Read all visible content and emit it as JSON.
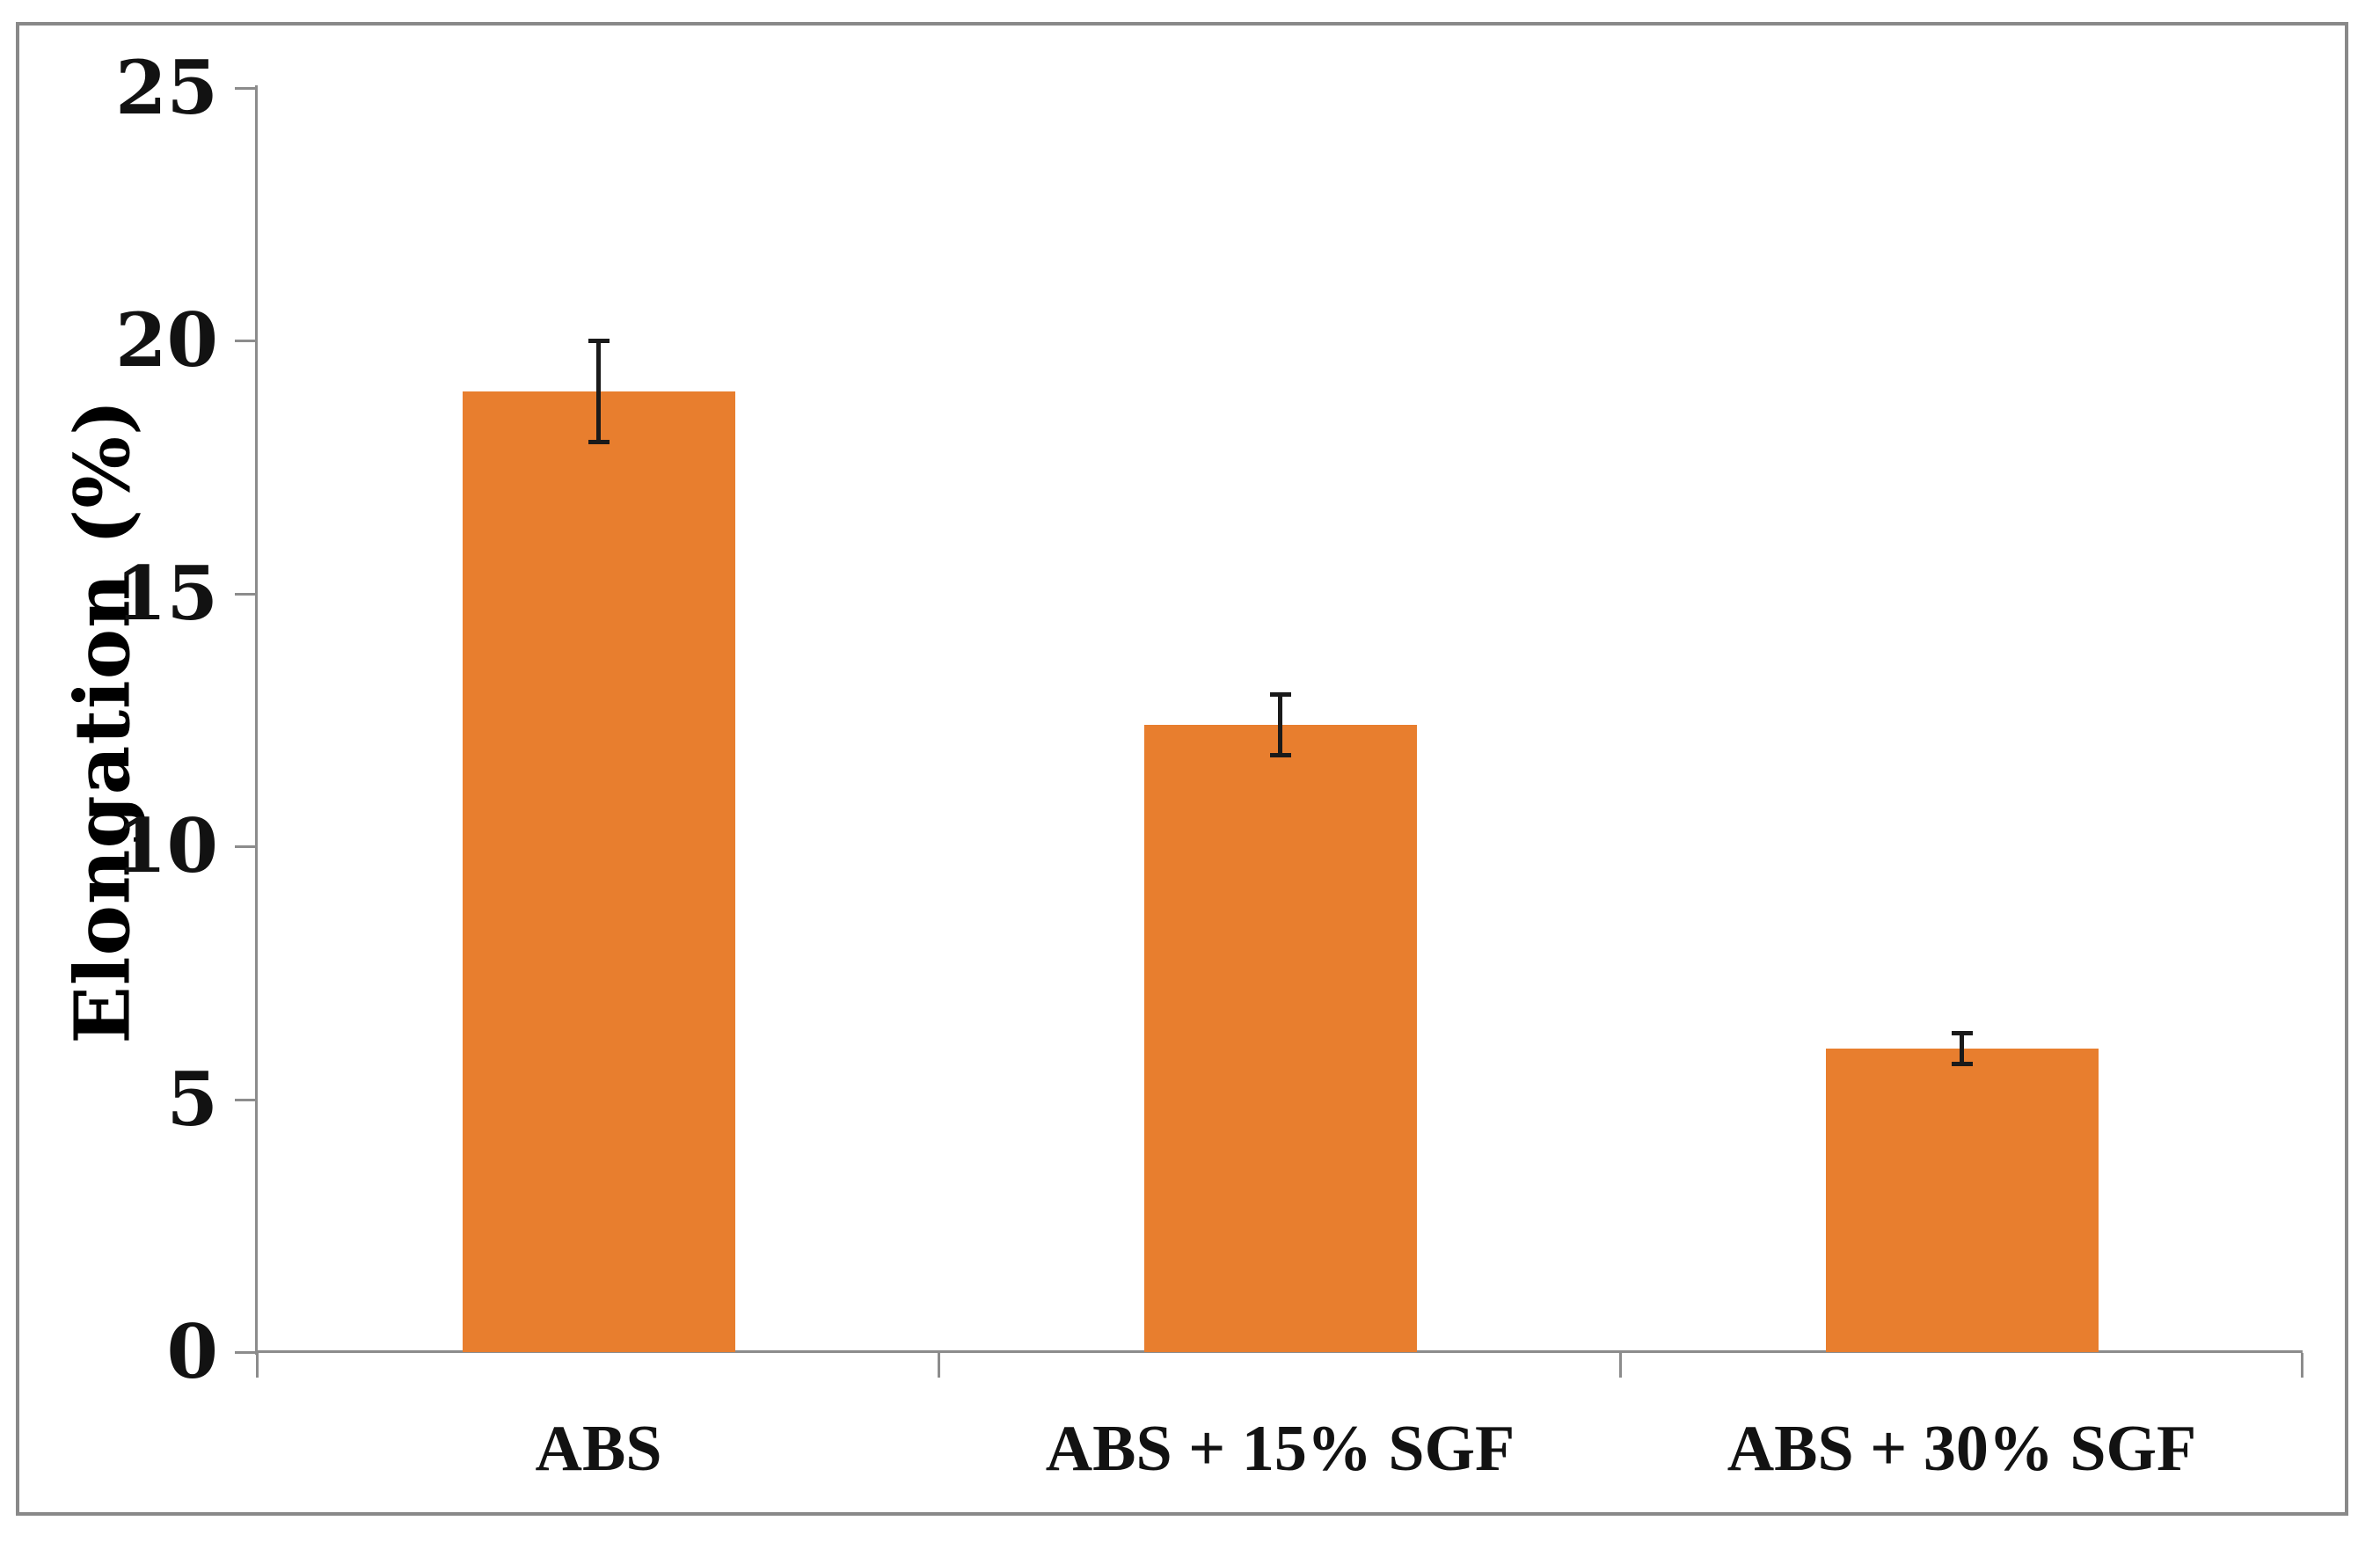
{
  "chart_data": {
    "type": "bar",
    "title": "",
    "categories": [
      "ABS",
      "ABS + 15% SGF",
      "ABS + 30% SGF"
    ],
    "values": [
      19.0,
      12.4,
      6.0
    ],
    "error_bars_plus_minus": [
      1.0,
      0.6,
      0.3
    ],
    "ylabel": "Elongation (%)",
    "xlabel": "",
    "ylim": [
      0,
      25
    ],
    "yticks": [
      0,
      5,
      10,
      15,
      20,
      25
    ],
    "grid": false,
    "legend": null,
    "bar_color": "#E87E2E",
    "error_bar_color": "#1A1A1A",
    "axis_line_color": "#8C8C8C",
    "frame_border_color": "#898989",
    "text_color": "#121212"
  }
}
